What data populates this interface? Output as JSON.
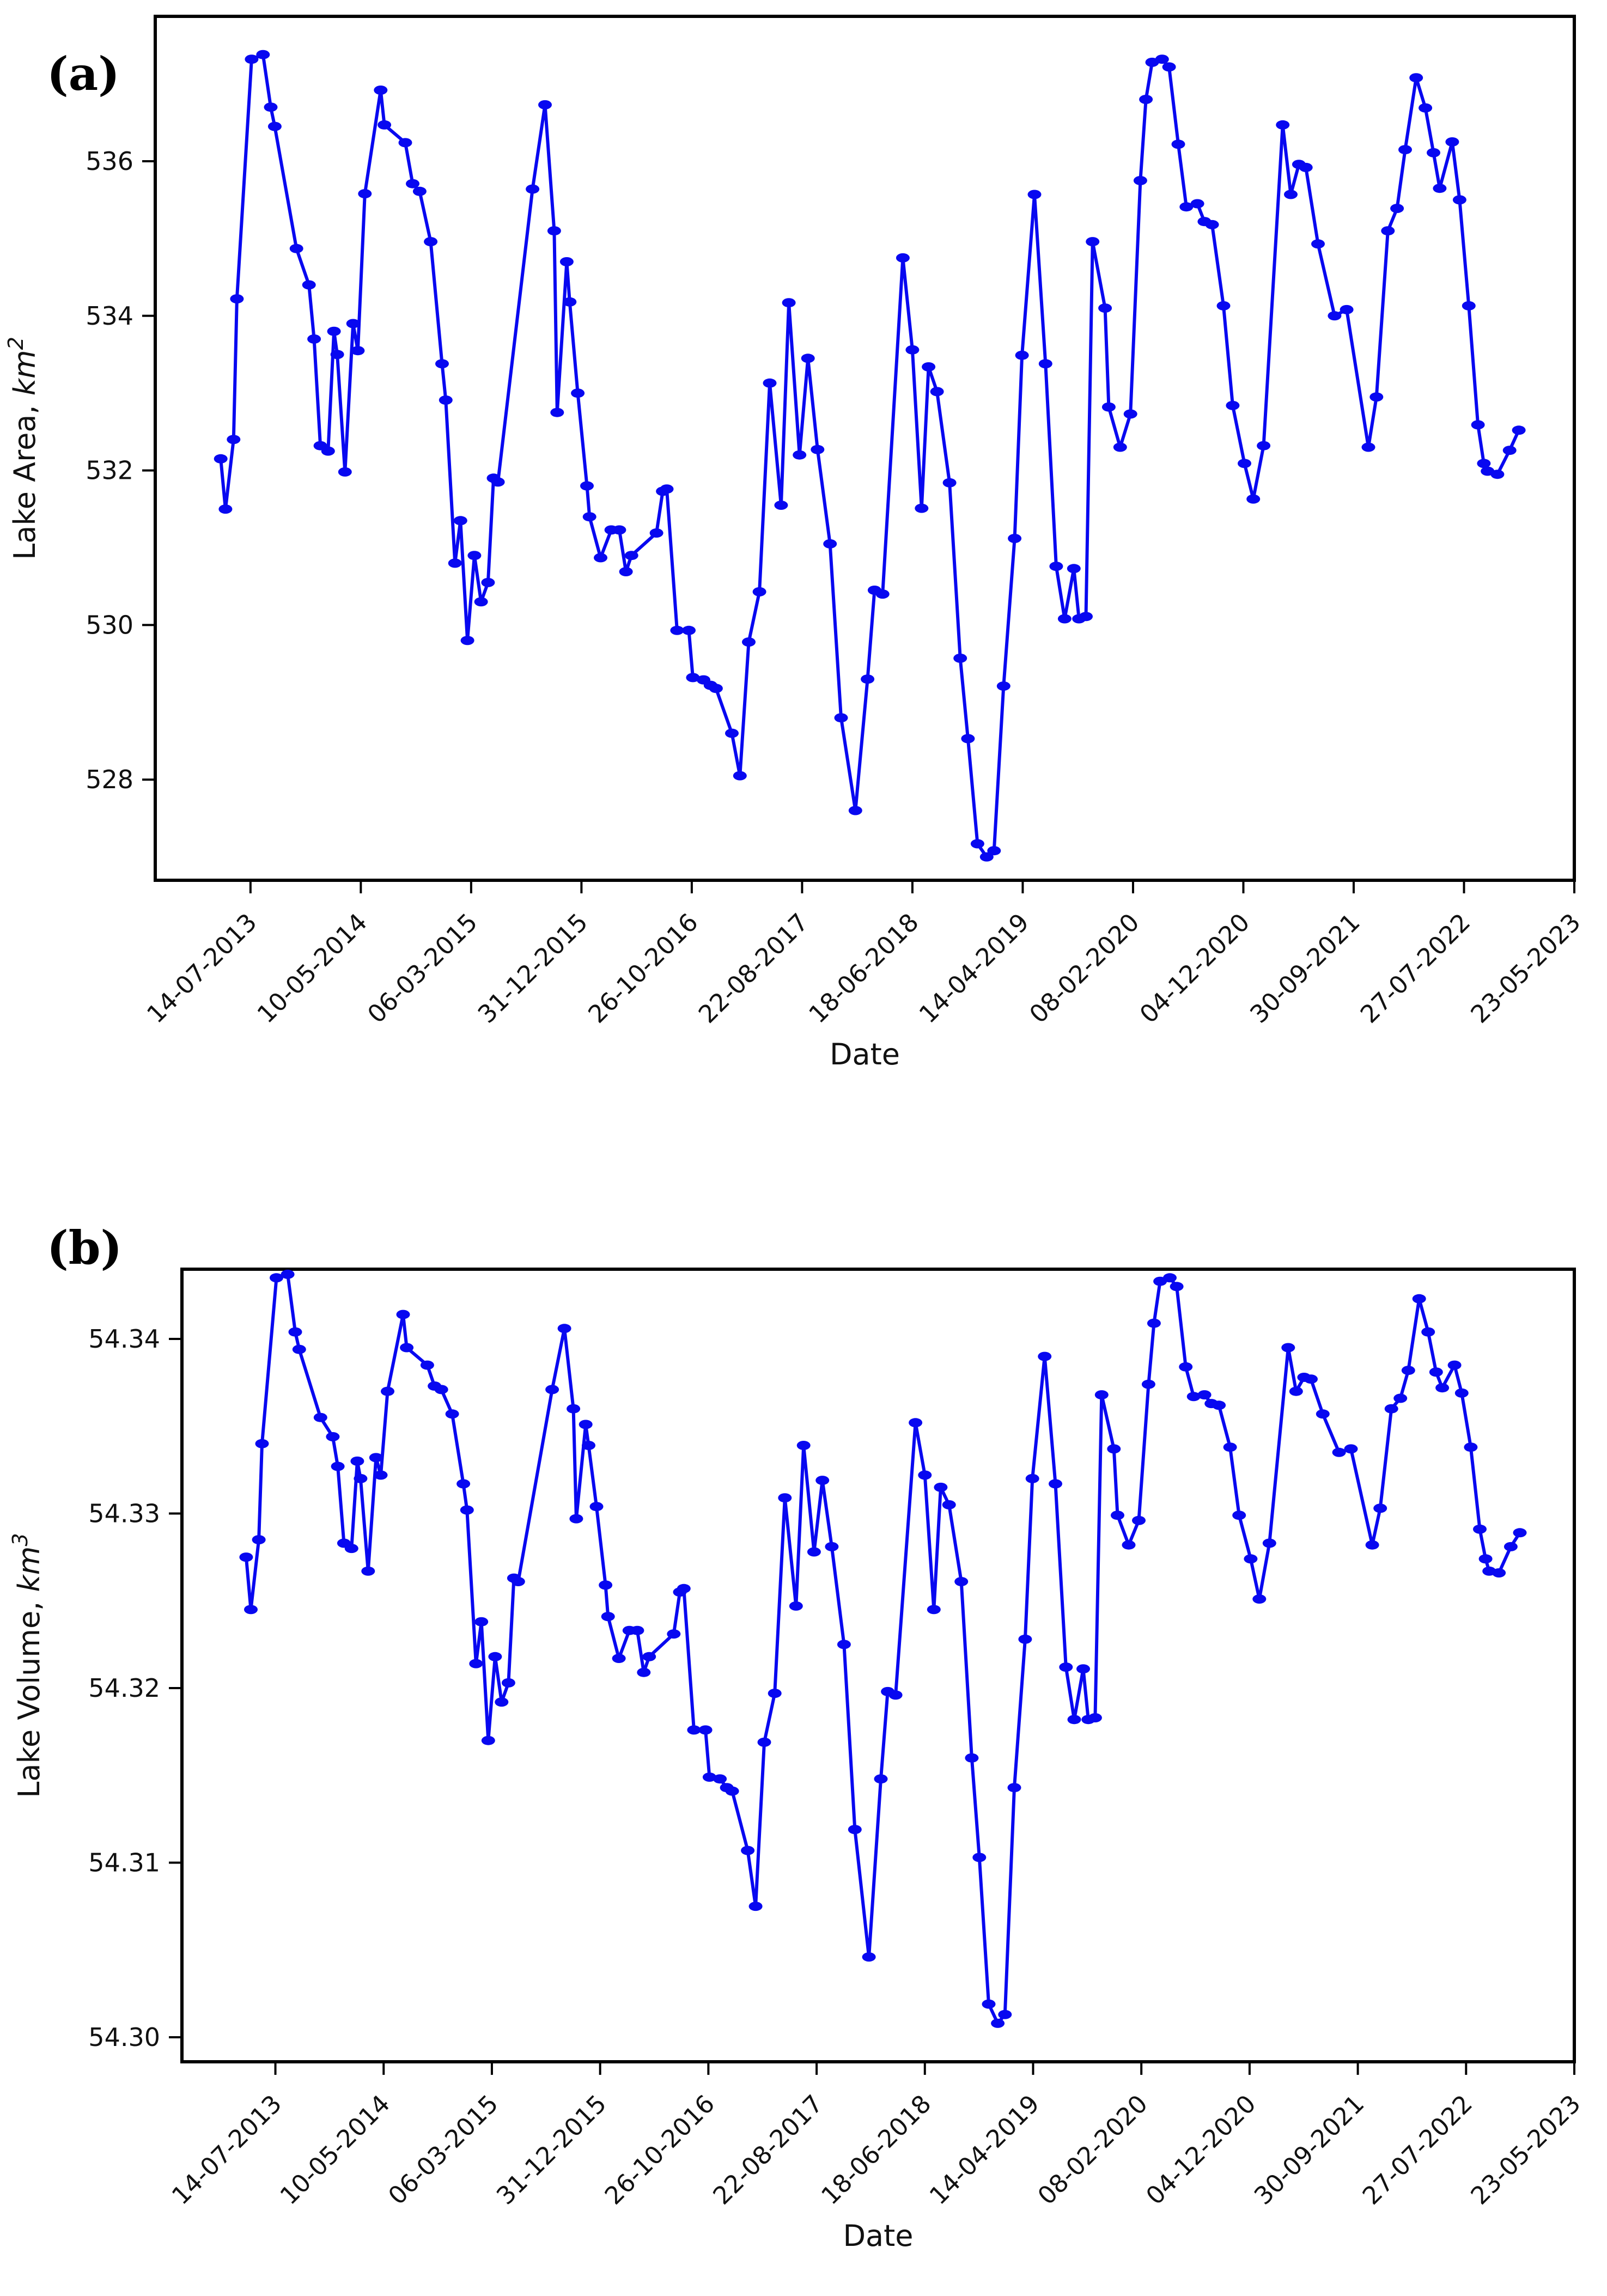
{
  "figure_color": "#0808f0",
  "chart_data": [
    {
      "type": "line",
      "panel_label": "(a)",
      "title": "",
      "xlabel": "Date",
      "ylabel": "Lake Area, km^2",
      "ylabel_plain": "Lake Area, ",
      "ylabel_math": "km",
      "ylabel_exp": "2",
      "legend_position": "none",
      "grid": false,
      "marker": "circle",
      "line_color": "#0808f0",
      "x_tick_labels": [
        "14-07-2013",
        "10-05-2014",
        "06-03-2015",
        "31-12-2015",
        "26-10-2016",
        "22-08-2017",
        "18-06-2018",
        "14-04-2019",
        "08-02-2020",
        "04-12-2020",
        "30-09-2021",
        "27-07-2022",
        "23-05-2023"
      ],
      "x_tick_days": [
        0,
        300,
        600,
        900,
        1200,
        1500,
        1800,
        2100,
        2400,
        2700,
        3000,
        3300,
        3600
      ],
      "xlim_days": [
        -259,
        3600
      ],
      "yticks": [
        528,
        530,
        532,
        534,
        536
      ],
      "ylim": [
        526.7,
        537.87
      ],
      "x_days": [
        -81,
        -68,
        -46,
        -37,
        3,
        34,
        55,
        66,
        125,
        159,
        173,
        190,
        211,
        227,
        236,
        257,
        279,
        292,
        311,
        354,
        364,
        421,
        441,
        460,
        490,
        521,
        531,
        556,
        571,
        590,
        609,
        627,
        646,
        661,
        673,
        767,
        801,
        826,
        834,
        860,
        868,
        890,
        915,
        922,
        952,
        981,
        1003,
        1021,
        1036,
        1104,
        1121,
        1132,
        1160,
        1192,
        1203,
        1232,
        1251,
        1266,
        1309,
        1331,
        1355,
        1384,
        1412,
        1443,
        1464,
        1493,
        1516,
        1542,
        1576,
        1606,
        1645,
        1678,
        1697,
        1719,
        1774,
        1800,
        1825,
        1844,
        1867,
        1901,
        1930,
        1951,
        1977,
        2002,
        2022,
        2048,
        2078,
        2098,
        2132,
        2162,
        2191,
        2214,
        2239,
        2253,
        2272,
        2290,
        2324,
        2334,
        2365,
        2393,
        2420,
        2435,
        2452,
        2479,
        2498,
        2523,
        2545,
        2575,
        2594,
        2615,
        2646,
        2671,
        2703,
        2727,
        2755,
        2807,
        2829,
        2851,
        2870,
        2903,
        2948,
        2981,
        3040,
        3062,
        3093,
        3118,
        3140,
        3170,
        3195,
        3217,
        3234,
        3268,
        3288,
        3313,
        3338,
        3354,
        3364,
        3391,
        3424,
        3449
      ],
      "values": [
        532.15,
        531.5,
        532.4,
        534.22,
        537.32,
        537.38,
        536.7,
        536.45,
        534.87,
        534.4,
        533.7,
        532.32,
        532.25,
        533.8,
        533.5,
        531.98,
        533.9,
        533.55,
        535.58,
        536.92,
        536.47,
        536.24,
        535.71,
        535.61,
        534.96,
        533.38,
        532.91,
        530.8,
        531.35,
        529.8,
        530.9,
        530.3,
        530.55,
        531.9,
        531.85,
        535.64,
        536.73,
        535.1,
        532.75,
        534.7,
        534.18,
        533.0,
        531.8,
        531.4,
        530.87,
        531.23,
        531.23,
        530.69,
        530.9,
        531.19,
        531.73,
        531.76,
        529.93,
        529.93,
        529.32,
        529.29,
        529.22,
        529.18,
        528.6,
        528.05,
        529.78,
        530.43,
        533.13,
        531.55,
        534.17,
        532.2,
        533.45,
        532.27,
        531.05,
        528.8,
        527.6,
        529.3,
        530.45,
        530.4,
        534.75,
        533.56,
        531.51,
        533.34,
        533.02,
        531.84,
        529.57,
        528.53,
        527.17,
        527.0,
        527.08,
        529.21,
        531.12,
        533.49,
        535.57,
        533.38,
        530.76,
        530.08,
        530.73,
        530.08,
        530.11,
        534.96,
        534.1,
        532.82,
        532.3,
        532.73,
        535.75,
        536.8,
        537.28,
        537.32,
        537.22,
        536.22,
        535.41,
        535.45,
        535.22,
        535.18,
        534.13,
        532.84,
        532.09,
        531.63,
        532.32,
        536.47,
        535.57,
        535.96,
        535.92,
        534.93,
        534.0,
        534.08,
        532.3,
        532.95,
        535.1,
        535.39,
        536.15,
        537.08,
        536.69,
        536.11,
        535.65,
        536.25,
        535.5,
        534.13,
        532.59,
        532.09,
        531.99,
        531.95,
        532.26,
        532.52
      ]
    },
    {
      "type": "line",
      "panel_label": "(b)",
      "title": "",
      "xlabel": "Date",
      "ylabel": "Lake Volume, km^3",
      "ylabel_plain": "Lake Volume, ",
      "ylabel_math": "km",
      "ylabel_exp": "3",
      "legend_position": "none",
      "grid": false,
      "marker": "circle",
      "line_color": "#0808f0",
      "x_tick_labels": [
        "14-07-2013",
        "10-05-2014",
        "06-03-2015",
        "31-12-2015",
        "26-10-2016",
        "22-08-2017",
        "18-06-2018",
        "14-04-2019",
        "08-02-2020",
        "04-12-2020",
        "30-09-2021",
        "27-07-2022",
        "23-05-2023"
      ],
      "x_tick_days": [
        0,
        300,
        600,
        900,
        1200,
        1500,
        1800,
        2100,
        2400,
        2700,
        3000,
        3300,
        3600
      ],
      "xlim_days": [
        -259,
        3600
      ],
      "yticks": [
        54.3,
        54.31,
        54.32,
        54.33,
        54.34
      ],
      "ylim": [
        54.2986,
        54.344
      ],
      "x_days": [
        -81,
        -68,
        -46,
        -37,
        3,
        34,
        55,
        66,
        125,
        159,
        173,
        190,
        211,
        227,
        236,
        257,
        279,
        292,
        311,
        354,
        364,
        421,
        441,
        460,
        490,
        521,
        531,
        556,
        571,
        590,
        609,
        627,
        646,
        661,
        673,
        767,
        801,
        826,
        834,
        860,
        868,
        890,
        915,
        922,
        952,
        981,
        1003,
        1021,
        1036,
        1104,
        1121,
        1132,
        1160,
        1192,
        1203,
        1232,
        1251,
        1266,
        1309,
        1331,
        1355,
        1384,
        1412,
        1443,
        1464,
        1493,
        1516,
        1542,
        1576,
        1606,
        1645,
        1678,
        1697,
        1719,
        1774,
        1800,
        1825,
        1844,
        1867,
        1901,
        1930,
        1951,
        1977,
        2002,
        2022,
        2048,
        2078,
        2098,
        2132,
        2162,
        2191,
        2214,
        2239,
        2253,
        2272,
        2290,
        2324,
        2334,
        2365,
        2393,
        2420,
        2435,
        2452,
        2479,
        2498,
        2523,
        2545,
        2575,
        2594,
        2615,
        2646,
        2671,
        2703,
        2727,
        2755,
        2807,
        2829,
        2851,
        2870,
        2903,
        2948,
        2981,
        3040,
        3062,
        3093,
        3118,
        3140,
        3170,
        3195,
        3217,
        3234,
        3268,
        3288,
        3313,
        3338,
        3354,
        3364,
        3391,
        3424,
        3449
      ],
      "values": [
        54.3275,
        54.3245,
        54.3285,
        54.334,
        54.3435,
        54.3437,
        54.3404,
        54.3394,
        54.3355,
        54.3344,
        54.3327,
        54.3283,
        54.328,
        54.333,
        54.332,
        54.3267,
        54.3332,
        54.3322,
        54.337,
        54.3414,
        54.3395,
        54.3385,
        54.3373,
        54.3371,
        54.3357,
        54.3317,
        54.3302,
        54.3214,
        54.3238,
        54.317,
        54.3218,
        54.3192,
        54.3203,
        54.3263,
        54.3261,
        54.3371,
        54.3406,
        54.336,
        54.3297,
        54.3351,
        54.3339,
        54.3304,
        54.3259,
        54.3241,
        54.3217,
        54.3233,
        54.3233,
        54.3209,
        54.3218,
        54.3231,
        54.3255,
        54.3257,
        54.3176,
        54.3176,
        54.3149,
        54.3148,
        54.3143,
        54.3141,
        54.3107,
        54.3075,
        54.3169,
        54.3197,
        54.3309,
        54.3247,
        54.3339,
        54.3278,
        54.3319,
        54.3281,
        54.3225,
        54.3119,
        54.3046,
        54.3148,
        54.3198,
        54.3196,
        54.3352,
        54.3322,
        54.3245,
        54.3315,
        54.3305,
        54.3261,
        54.316,
        54.3103,
        54.3019,
        54.3008,
        54.3013,
        54.3143,
        54.3228,
        54.332,
        54.339,
        54.3317,
        54.3212,
        54.3182,
        54.3211,
        54.3182,
        54.3183,
        54.3368,
        54.3337,
        54.3299,
        54.3282,
        54.3296,
        54.3374,
        54.3409,
        54.3433,
        54.3435,
        54.343,
        54.3384,
        54.3367,
        54.3368,
        54.3363,
        54.3362,
        54.3338,
        54.3299,
        54.3274,
        54.3251,
        54.3283,
        54.3395,
        54.337,
        54.3378,
        54.3377,
        54.3357,
        54.3335,
        54.3337,
        54.3282,
        54.3303,
        54.336,
        54.3366,
        54.3382,
        54.3423,
        54.3404,
        54.3381,
        54.3372,
        54.3385,
        54.3369,
        54.3338,
        54.3291,
        54.3274,
        54.3267,
        54.3266,
        54.3281,
        54.3289
      ]
    }
  ]
}
